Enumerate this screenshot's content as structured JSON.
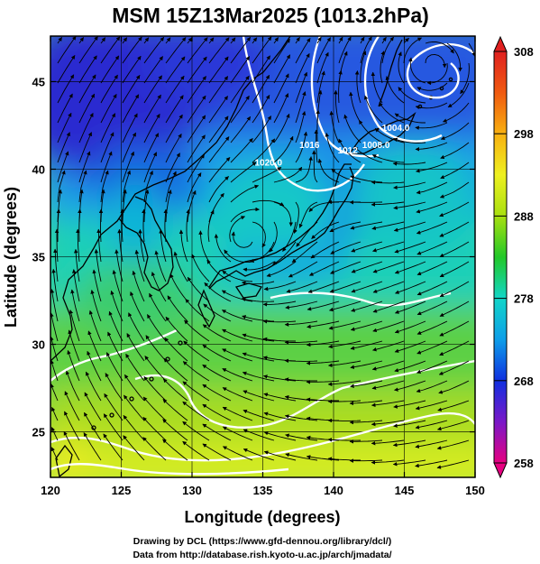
{
  "title": "MSM 15Z13Mar2025 (1013.2hPa)",
  "x_axis": {
    "label": "Longitude (degrees)",
    "ticks": [
      120,
      125,
      130,
      135,
      140,
      145,
      150
    ],
    "range": [
      120,
      150
    ]
  },
  "y_axis": {
    "label": "Latitude  (degrees)",
    "ticks": [
      25,
      30,
      35,
      40,
      45
    ],
    "range": [
      22.4,
      47.6
    ]
  },
  "colorbar": {
    "ticks": [
      258,
      268,
      278,
      288,
      298,
      308
    ],
    "range": [
      258,
      308
    ]
  },
  "isobars": [
    {
      "label": "1016",
      "lon": 138.3,
      "lat": 41.2
    },
    {
      "label": "1012",
      "lon": 141.0,
      "lat": 40.9
    },
    {
      "label": "1020.0",
      "lon": 135.4,
      "lat": 40.2
    },
    {
      "label": "1008.0",
      "lon": 143.0,
      "lat": 41.2
    },
    {
      "label": "1004.0",
      "lon": 144.4,
      "lat": 42.2
    }
  ],
  "credits": {
    "line1": "Drawing by DCL (https://www.gfd-dennou.org/library/dcl/)",
    "line2": "Data from http://database.rish.kyoto-u.ac.jp/arch/jmadata/"
  },
  "colors": {
    "scale": [
      "#e60080",
      "#7a18c8",
      "#1030e0",
      "#0d9ee8",
      "#12d6c8",
      "#22c828",
      "#a8e010",
      "#eef020",
      "#f8b010",
      "#f05a10",
      "#e02020"
    ]
  }
}
